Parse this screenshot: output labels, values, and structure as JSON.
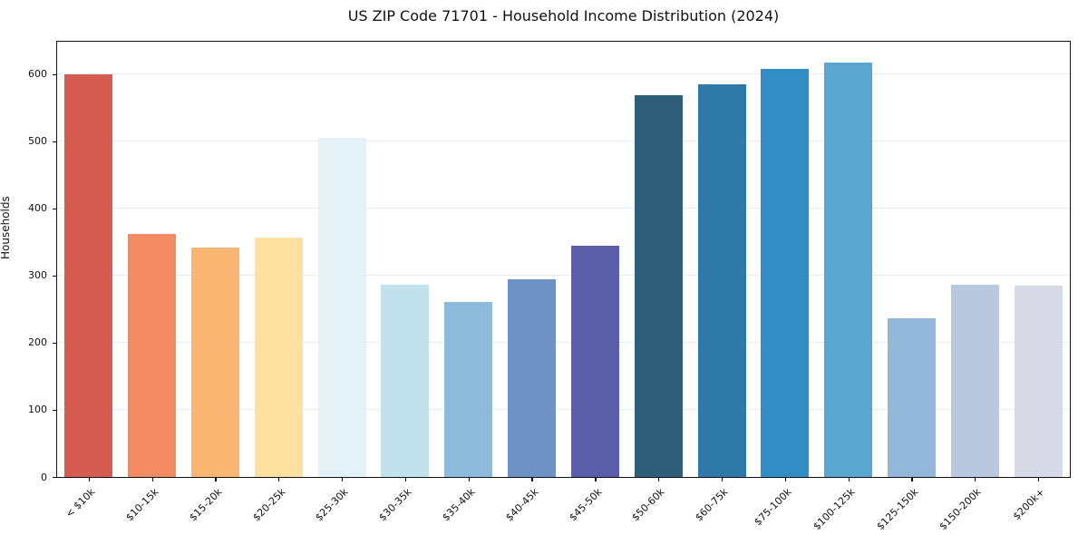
{
  "chart_data": {
    "type": "bar",
    "title": "US ZIP Code 71701 - Household Income Distribution (2024)",
    "ylabel": "Households",
    "xlabel": "",
    "categories": [
      "< $10k",
      "$10-15k",
      "$15-20k",
      "$20-25k",
      "$25-30k",
      "$30-35k",
      "$35-40k",
      "$40-45k",
      "$45-50k",
      "$50-60k",
      "$60-75k",
      "$75-100k",
      "$100-125k",
      "$125-150k",
      "$150-200k",
      "$200k+"
    ],
    "values": [
      599,
      362,
      341,
      356,
      505,
      286,
      261,
      294,
      344,
      569,
      584,
      607,
      617,
      236,
      286,
      285
    ],
    "bar_colors": [
      "#d65c52",
      "#f38a63",
      "#f9b572",
      "#fde19e",
      "#e4f1f6",
      "#c1e1ed",
      "#8ebbdb",
      "#6e92c5",
      "#5a5ea9",
      "#2f5f78",
      "#2e79a8",
      "#338dc5",
      "#5ba6d0",
      "#93b7d8",
      "#b7c8df",
      "#d7d9e6"
    ],
    "yticks": [
      0,
      100,
      200,
      300,
      400,
      500,
      600
    ],
    "ylim": [
      0,
      648
    ],
    "grid": "horizontal-only",
    "legend": "none",
    "background_color": "#ffffff",
    "spine_color": "#111111",
    "gridline_color": "#e9e9f0",
    "bar_width_fraction": 0.76
  }
}
